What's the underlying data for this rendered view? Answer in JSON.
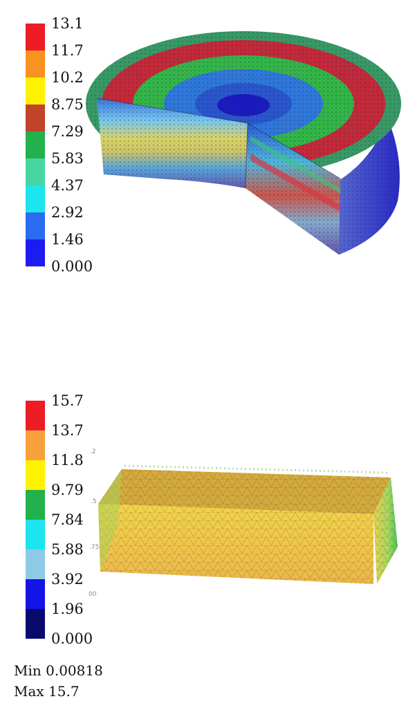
{
  "figure_top": {
    "legend": {
      "ticks": [
        "13.1",
        "11.7",
        "10.2",
        "8.75",
        "7.29",
        "5.83",
        "4.37",
        "2.92",
        "1.46",
        "0.000"
      ],
      "colors": [
        "#ee1c24",
        "#f7931e",
        "#fff200",
        "#c1432a",
        "#22b14c",
        "#46d7a0",
        "#1de5ee",
        "#2a6cf0",
        "#1c1cf2"
      ]
    },
    "model": "cylinder-cutaway-mesh"
  },
  "figure_bottom": {
    "legend": {
      "ticks": [
        "15.7",
        "13.7",
        "11.8",
        "9.79",
        "7.84",
        "5.88",
        "3.92",
        "1.96",
        "0.000"
      ],
      "colors": [
        "#ee1c24",
        "#f7a03c",
        "#fff200",
        "#22b14c",
        "#1de5ee",
        "#8ecae6",
        "#1414e6",
        "#0a0a6e"
      ]
    },
    "model": "rectangular-block-mesh",
    "axis_ticks": [
      ".2",
      ".5",
      ".75",
      "00"
    ],
    "min_label": "Min",
    "min_value": "0.00818",
    "max_label": "Max",
    "max_value": "15.7"
  }
}
